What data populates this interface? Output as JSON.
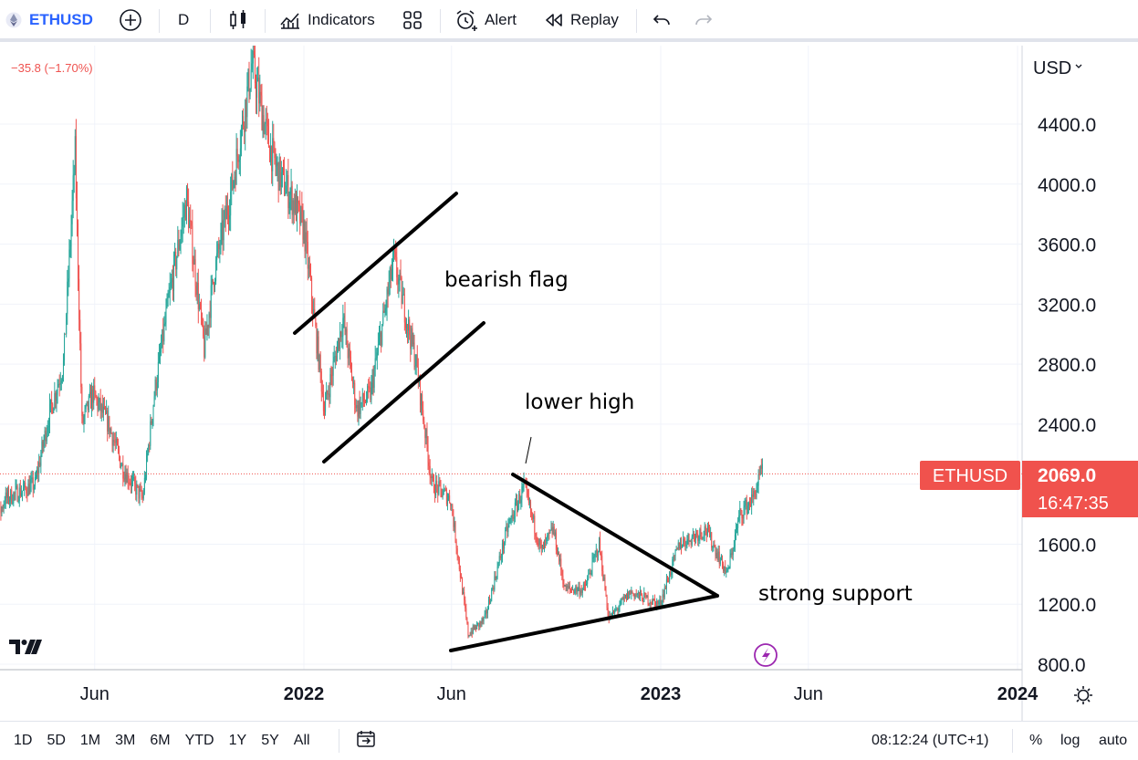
{
  "toolbar": {
    "symbol": "ETHUSD",
    "interval": "D",
    "indicators_label": "Indicators",
    "alert_label": "Alert",
    "replay_label": "Replay"
  },
  "legend": {
    "change_text": "−35.8 (−1.70%)"
  },
  "price_scale": {
    "currency": "USD"
  },
  "last_price": {
    "symbol": "ETHUSD",
    "value": "2069.0",
    "countdown": "16:47:35"
  },
  "bottom": {
    "ranges": [
      "1D",
      "5D",
      "1M",
      "3M",
      "6M",
      "YTD",
      "1Y",
      "5Y",
      "All"
    ],
    "time": "08:12:24 (UTC+1)",
    "percent": "%",
    "log": "log",
    "auto": "auto"
  },
  "colors": {
    "up": "#26a69a",
    "down": "#ef5350",
    "last_price_bg": "#f0524d",
    "grid": "#f0f3fa"
  },
  "chart_data": {
    "type": "candlestick",
    "symbol": "ETHUSD",
    "yunit": "USD",
    "ylim": [
      800,
      4800
    ],
    "y_ticks": [
      800,
      1200,
      1600,
      2000,
      2400,
      2800,
      3200,
      3600,
      4000,
      4400
    ],
    "y_tick_labels": [
      "800.0",
      "1200.0",
      "1600.0",
      "2400.0",
      "2800.0",
      "3200.0",
      "3600.0",
      "4000.0",
      "4400.0"
    ],
    "x_ticks": [
      {
        "date": "2021-06-01",
        "label": "Jun",
        "bold": false
      },
      {
        "date": "2022-01-01",
        "label": "2022",
        "bold": true
      },
      {
        "date": "2022-06-01",
        "label": "Jun",
        "bold": false
      },
      {
        "date": "2023-01-01",
        "label": "2023",
        "bold": true
      },
      {
        "date": "2023-06-01",
        "label": "Jun",
        "bold": false
      },
      {
        "date": "2024-01-01",
        "label": "2024",
        "bold": true
      }
    ],
    "xlim": [
      "2021-02-07",
      "2024-02-01"
    ],
    "last_price": 2069.0,
    "price_path": [
      [
        "2021-02-08",
        1500
      ],
      [
        "2021-03-01",
        1900
      ],
      [
        "2021-04-01",
        2000
      ],
      [
        "2021-04-15",
        2450
      ],
      [
        "2021-04-30",
        2800
      ],
      [
        "2021-05-12",
        4200
      ],
      [
        "2021-05-19",
        2400
      ],
      [
        "2021-05-30",
        2600
      ],
      [
        "2021-06-15",
        2400
      ],
      [
        "2021-06-30",
        2100
      ],
      [
        "2021-07-20",
        1900
      ],
      [
        "2021-08-01",
        2600
      ],
      [
        "2021-08-15",
        3200
      ],
      [
        "2021-09-03",
        3900
      ],
      [
        "2021-09-21",
        2900
      ],
      [
        "2021-10-01",
        3400
      ],
      [
        "2021-10-20",
        4000
      ],
      [
        "2021-11-09",
        4800
      ],
      [
        "2021-11-25",
        4300
      ],
      [
        "2021-12-04",
        4100
      ],
      [
        "2021-12-20",
        3900
      ],
      [
        "2022-01-01",
        3700
      ],
      [
        "2022-01-22",
        2500
      ],
      [
        "2022-02-10",
        3100
      ],
      [
        "2022-02-24",
        2500
      ],
      [
        "2022-03-10",
        2600
      ],
      [
        "2022-04-03",
        3500
      ],
      [
        "2022-04-26",
        2800
      ],
      [
        "2022-05-12",
        2000
      ],
      [
        "2022-05-31",
        1900
      ],
      [
        "2022-06-18",
        1000
      ],
      [
        "2022-07-05",
        1100
      ],
      [
        "2022-07-28",
        1700
      ],
      [
        "2022-08-14",
        1980
      ],
      [
        "2022-09-01",
        1550
      ],
      [
        "2022-09-13",
        1700
      ],
      [
        "2022-09-25",
        1300
      ],
      [
        "2022-10-15",
        1300
      ],
      [
        "2022-10-30",
        1600
      ],
      [
        "2022-11-09",
        1100
      ],
      [
        "2022-12-01",
        1280
      ],
      [
        "2022-12-31",
        1200
      ],
      [
        "2023-01-20",
        1600
      ],
      [
        "2023-02-16",
        1700
      ],
      [
        "2023-03-10",
        1400
      ],
      [
        "2023-03-23",
        1800
      ],
      [
        "2023-04-05",
        1900
      ],
      [
        "2023-04-15",
        2100
      ]
    ],
    "annotations": [
      {
        "text": "bearish flag"
      },
      {
        "text": "lower high"
      },
      {
        "text": "strong support"
      }
    ]
  }
}
